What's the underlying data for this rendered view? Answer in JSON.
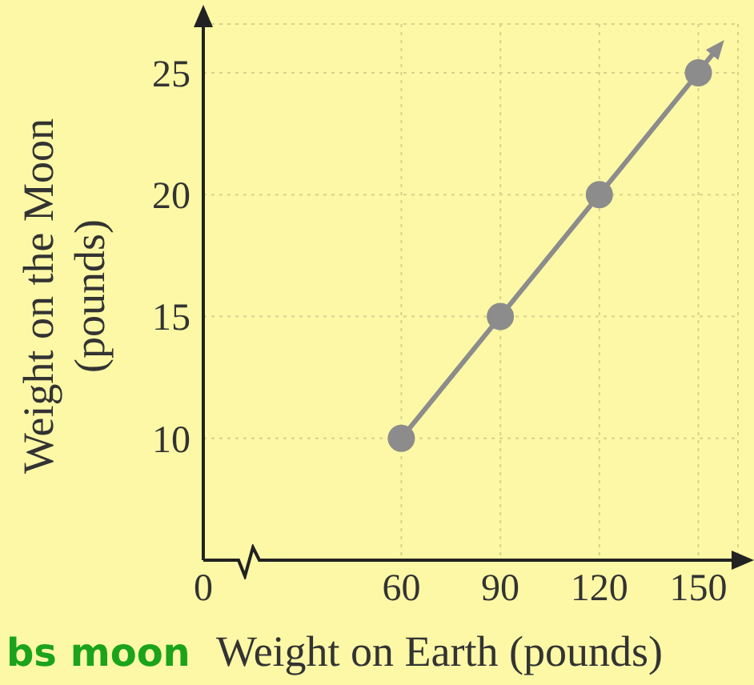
{
  "chart_data": {
    "type": "line",
    "xlabel": "Weight on Earth (pounds)",
    "ylabel": "Weight on the Moon (pounds)",
    "x": [
      60,
      90,
      120,
      150
    ],
    "series": [
      {
        "color": "#8c8c8c",
        "values": [
          10,
          15,
          20,
          25
        ]
      }
    ],
    "xlim": [
      0,
      162
    ],
    "xticks": [
      0,
      60,
      90,
      120,
      150
    ],
    "ylim": [
      5,
      27
    ],
    "yticks": [
      10,
      15,
      20,
      25
    ],
    "grid": true,
    "marker": "circle",
    "line_style": "solid",
    "annotations": [
      "bs moon"
    ]
  }
}
